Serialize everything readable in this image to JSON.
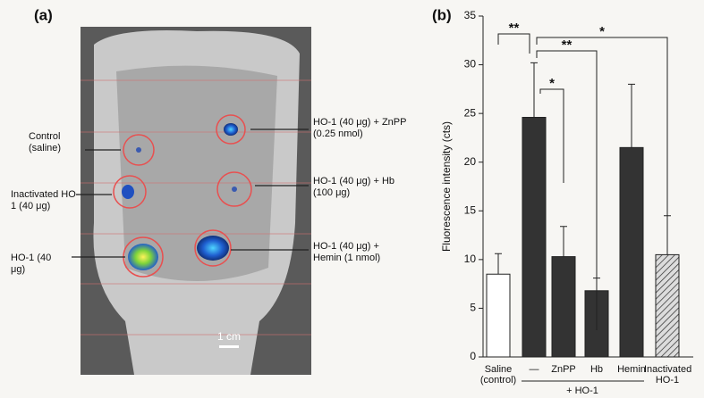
{
  "panel_a": {
    "label": "(a)",
    "annotations": [
      "Control (saline)",
      "Inactivated HO-1 (40 μg)",
      "HO-1 (40 μg)",
      "HO-1 (40 μg) + ZnPP (0.25 nmol)",
      "HO-1 (40 μg) + Hb (100 μg)",
      "HO-1 (40 μg) + Hemin (1 nmol)"
    ],
    "scale_bar": "1 cm"
  },
  "chart_data": {
    "type": "bar",
    "panel_label": "(b)",
    "y_label": "Fluorescence intensity (cts)",
    "categories": [
      "Saline (control)",
      "—",
      "ZnPP",
      "Hb",
      "Hemin",
      "Inactivated HO-1"
    ],
    "group_label": "+ HO-1",
    "values": [
      8.5,
      24.6,
      10.3,
      6.8,
      21.5,
      10.5
    ],
    "errors": [
      2.1,
      5.6,
      3.1,
      1.3,
      6.5,
      4.0
    ],
    "colors": [
      "#ffffff",
      "#333333",
      "#333333",
      "#333333",
      "#333333",
      "#cfcfcf"
    ],
    "hatched": [
      false,
      false,
      false,
      false,
      false,
      true
    ],
    "significance": [
      "**",
      "*",
      "**",
      "*"
    ],
    "ylim": [
      0,
      35
    ],
    "yticks": [
      0,
      5,
      10,
      15,
      20,
      25,
      30,
      35
    ]
  }
}
